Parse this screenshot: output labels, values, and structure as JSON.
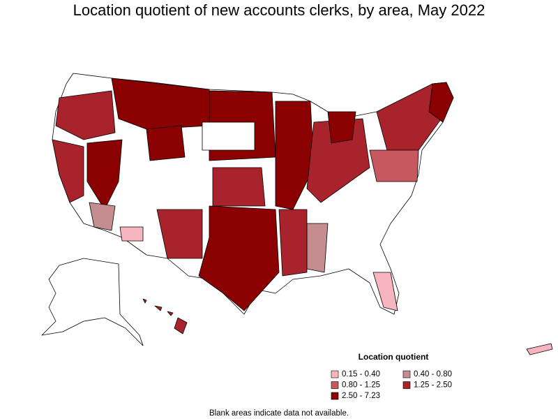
{
  "title": "Location quotient of new accounts clerks, by area, May 2022",
  "legend": {
    "title": "Location quotient",
    "items": [
      {
        "label": "0.15 - 0.40",
        "color": "#f7b5c0"
      },
      {
        "label": "0.40 - 0.80",
        "color": "#c48e90"
      },
      {
        "label": "0.80 - 1.25",
        "color": "#c85860"
      },
      {
        "label": "1.25 - 2.50",
        "color": "#a8232b"
      },
      {
        "label": "2.50 - 7.23",
        "color": "#8b0000"
      }
    ]
  },
  "note": "Blank areas indicate data not available."
}
